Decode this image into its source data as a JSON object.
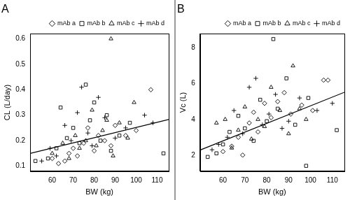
{
  "chart_data": [
    {
      "type": "scatter",
      "title": "A",
      "x_label": "BW (kg)",
      "y_label": "CL (L/day)",
      "xlim": [
        49.5,
        115.5
      ],
      "xticks": [
        60,
        70,
        80,
        90,
        100,
        110
      ],
      "ylim": [
        0.08,
        0.62
      ],
      "yticks": [
        0.1,
        0.2,
        0.3,
        0.4,
        0.5,
        0.6
      ],
      "grid": false,
      "legend": "top-right",
      "series": [
        {
          "name": "mAb a",
          "marker": "diamond",
          "color": "#000000",
          "x": [
            60,
            63,
            66,
            68,
            70,
            72,
            75,
            77,
            80,
            82,
            85,
            88,
            90,
            95,
            100,
            107
          ],
          "values": [
            0.13,
            0.11,
            0.12,
            0.15,
            0.17,
            0.14,
            0.19,
            0.25,
            0.16,
            0.22,
            0.2,
            0.18,
            0.26,
            0.22,
            0.24,
            0.4
          ]
        },
        {
          "name": "mAb b",
          "marker": "square",
          "color": "#000000",
          "x": [
            52,
            58,
            62,
            64,
            67,
            70,
            73,
            76,
            78,
            80,
            83,
            86,
            88,
            92,
            97,
            113
          ],
          "values": [
            0.12,
            0.13,
            0.17,
            0.33,
            0.21,
            0.25,
            0.19,
            0.42,
            0.28,
            0.35,
            0.2,
            0.3,
            0.16,
            0.22,
            0.27,
            0.15
          ]
        },
        {
          "name": "mAb c",
          "marker": "triangle",
          "color": "#000000",
          "x": [
            60,
            65,
            68,
            71,
            73,
            76,
            79,
            81,
            84,
            86,
            89,
            92,
            96,
            99,
            88
          ],
          "values": [
            0.15,
            0.19,
            0.13,
            0.22,
            0.17,
            0.2,
            0.32,
            0.18,
            0.24,
            0.28,
            0.14,
            0.27,
            0.21,
            0.35,
            0.6
          ]
        },
        {
          "name": "mAb d",
          "marker": "plus",
          "color": "#000000",
          "x": [
            55,
            59,
            62,
            66,
            69,
            72,
            74,
            77,
            79,
            82,
            85,
            90,
            95,
            104,
            108
          ],
          "values": [
            0.12,
            0.17,
            0.14,
            0.26,
            0.2,
            0.31,
            0.41,
            0.23,
            0.18,
            0.37,
            0.29,
            0.21,
            0.25,
            0.3,
            0.27
          ]
        }
      ],
      "trend_line": {
        "x": [
          49.5,
          115.5
        ],
        "values": [
          0.15,
          0.283
        ],
        "color": "#000000",
        "line_style": "solid"
      }
    },
    {
      "type": "scatter",
      "title": "B",
      "x_label": "BW (kg)",
      "y_label": "Vc (L)",
      "xlim": [
        49.5,
        115.5
      ],
      "xticks": [
        60,
        70,
        80,
        90,
        100,
        110
      ],
      "ylim": [
        1.1,
        8.8
      ],
      "yticks": [
        2,
        4,
        6,
        8
      ],
      "grid": false,
      "legend": "top-right",
      "series": [
        {
          "name": "mAb a",
          "marker": "diamond",
          "color": "#000000",
          "x": [
            60,
            64,
            67,
            69,
            72,
            74,
            76,
            79,
            82,
            85,
            88,
            91,
            96,
            101,
            106,
            108
          ],
          "values": [
            2.2,
            2.5,
            3.0,
            2.0,
            3.8,
            4.4,
            3.3,
            4.9,
            4.1,
            5.0,
            5.5,
            4.3,
            4.8,
            4.5,
            6.2,
            6.2
          ]
        },
        {
          "name": "mAb b",
          "marker": "square",
          "color": "#000000",
          "x": [
            53,
            57,
            60,
            63,
            67,
            70,
            74,
            77,
            80,
            83,
            85,
            89,
            93,
            98,
            99,
            112
          ],
          "values": [
            1.9,
            2.1,
            2.6,
            3.3,
            4.2,
            3.5,
            2.8,
            5.1,
            3.9,
            8.5,
            4.6,
            6.3,
            3.7,
            1.4,
            5.2,
            3.4
          ]
        },
        {
          "name": "mAb c",
          "marker": "triangle",
          "color": "#000000",
          "x": [
            57,
            61,
            64,
            67,
            70,
            73,
            76,
            79,
            82,
            86,
            90,
            92,
            95,
            98
          ],
          "values": [
            3.8,
            4.0,
            2.4,
            3.4,
            4.7,
            2.9,
            4.0,
            3.6,
            5.8,
            4.5,
            3.2,
            7.0,
            4.6,
            4.0
          ]
        },
        {
          "name": "mAb d",
          "marker": "plus",
          "color": "#000000",
          "x": [
            55,
            58,
            62,
            65,
            69,
            72,
            75,
            78,
            81,
            84,
            87,
            90,
            95,
            103,
            110
          ],
          "values": [
            2.3,
            2.6,
            3.0,
            4.5,
            3.2,
            5.8,
            6.3,
            3.7,
            4.3,
            5.4,
            3.5,
            3.9,
            5.2,
            4.5,
            4.9
          ]
        }
      ],
      "trend_line": {
        "x": [
          49.5,
          115.5
        ],
        "values": [
          2.28,
          5.52
        ],
        "color": "#000000",
        "line_style": "solid"
      }
    }
  ]
}
